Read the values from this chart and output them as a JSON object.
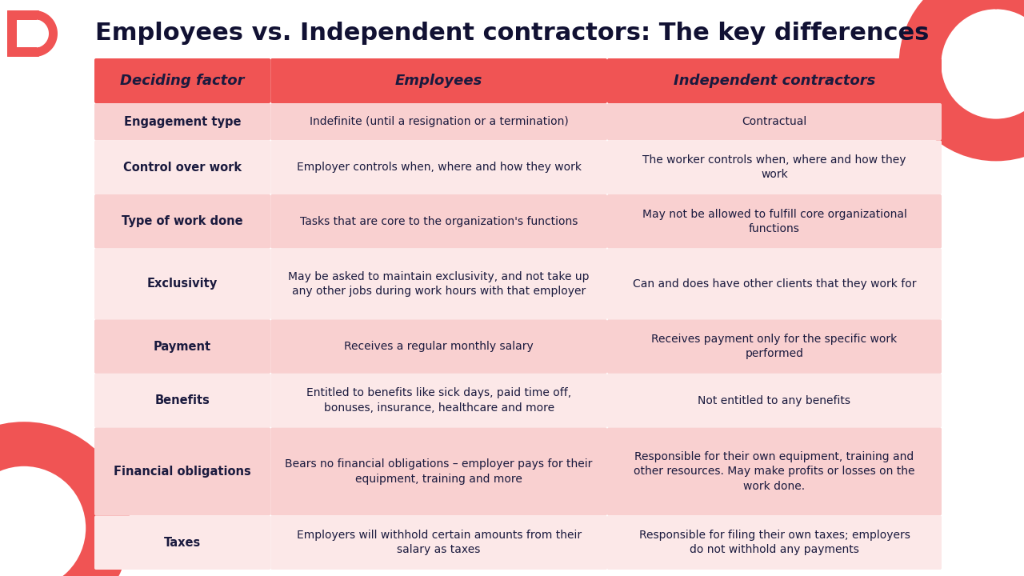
{
  "title": "Employees vs. Independent contractors: The key differences",
  "title_fontsize": 22,
  "title_color": "#111133",
  "bg_color": "#ffffff",
  "header_bg": "#f05454",
  "header_text_color": "#1a1a3e",
  "header_fontsize": 13,
  "cell_bg_even": "#f9d0d0",
  "cell_bg_odd": "#fce8e8",
  "cell_text_color": "#1a1a3e",
  "cell_fontsize": 10,
  "factor_fontsize": 10.5,
  "col_headers": [
    "Deciding factor",
    "Employees",
    "Independent contractors"
  ],
  "rows": [
    {
      "factor": "Engagement type",
      "employees": "Indefinite (until a resignation or a termination)",
      "contractors": "Contractual"
    },
    {
      "factor": "Control over work",
      "employees": "Employer controls when, where and how they work",
      "contractors": "The worker controls when, where and how they\nwork"
    },
    {
      "factor": "Type of work done",
      "employees": "Tasks that are core to the organization's functions",
      "contractors": "May not be allowed to fulfill core organizational\nfunctions"
    },
    {
      "factor": "Exclusivity",
      "employees": "May be asked to maintain exclusivity, and not take up\nany other jobs during work hours with that employer",
      "contractors": "Can and does have other clients that they work for"
    },
    {
      "factor": "Payment",
      "employees": "Receives a regular monthly salary",
      "contractors": "Receives payment only for the specific work\nperformed"
    },
    {
      "factor": "Benefits",
      "employees": "Entitled to benefits like sick days, paid time off,\nbonuses, insurance, healthcare and more",
      "contractors": "Not entitled to any benefits"
    },
    {
      "factor": "Financial obligations",
      "employees": "Bears no financial obligations – employer pays for their\nequipment, training and more",
      "contractors": "Responsible for their own equipment, training and\nother resources. May make profits or losses on the\nwork done."
    },
    {
      "factor": "Taxes",
      "employees": "Employers will withhold certain amounts from their\nsalary as taxes",
      "contractors": "Responsible for filing their own taxes; employers\ndo not withhold any payments"
    }
  ],
  "logo_color": "#f05454",
  "circle_color": "#f05454",
  "row_weights": [
    1,
    1.5,
    1.5,
    2,
    1.5,
    1.5,
    2.5,
    1.5
  ]
}
